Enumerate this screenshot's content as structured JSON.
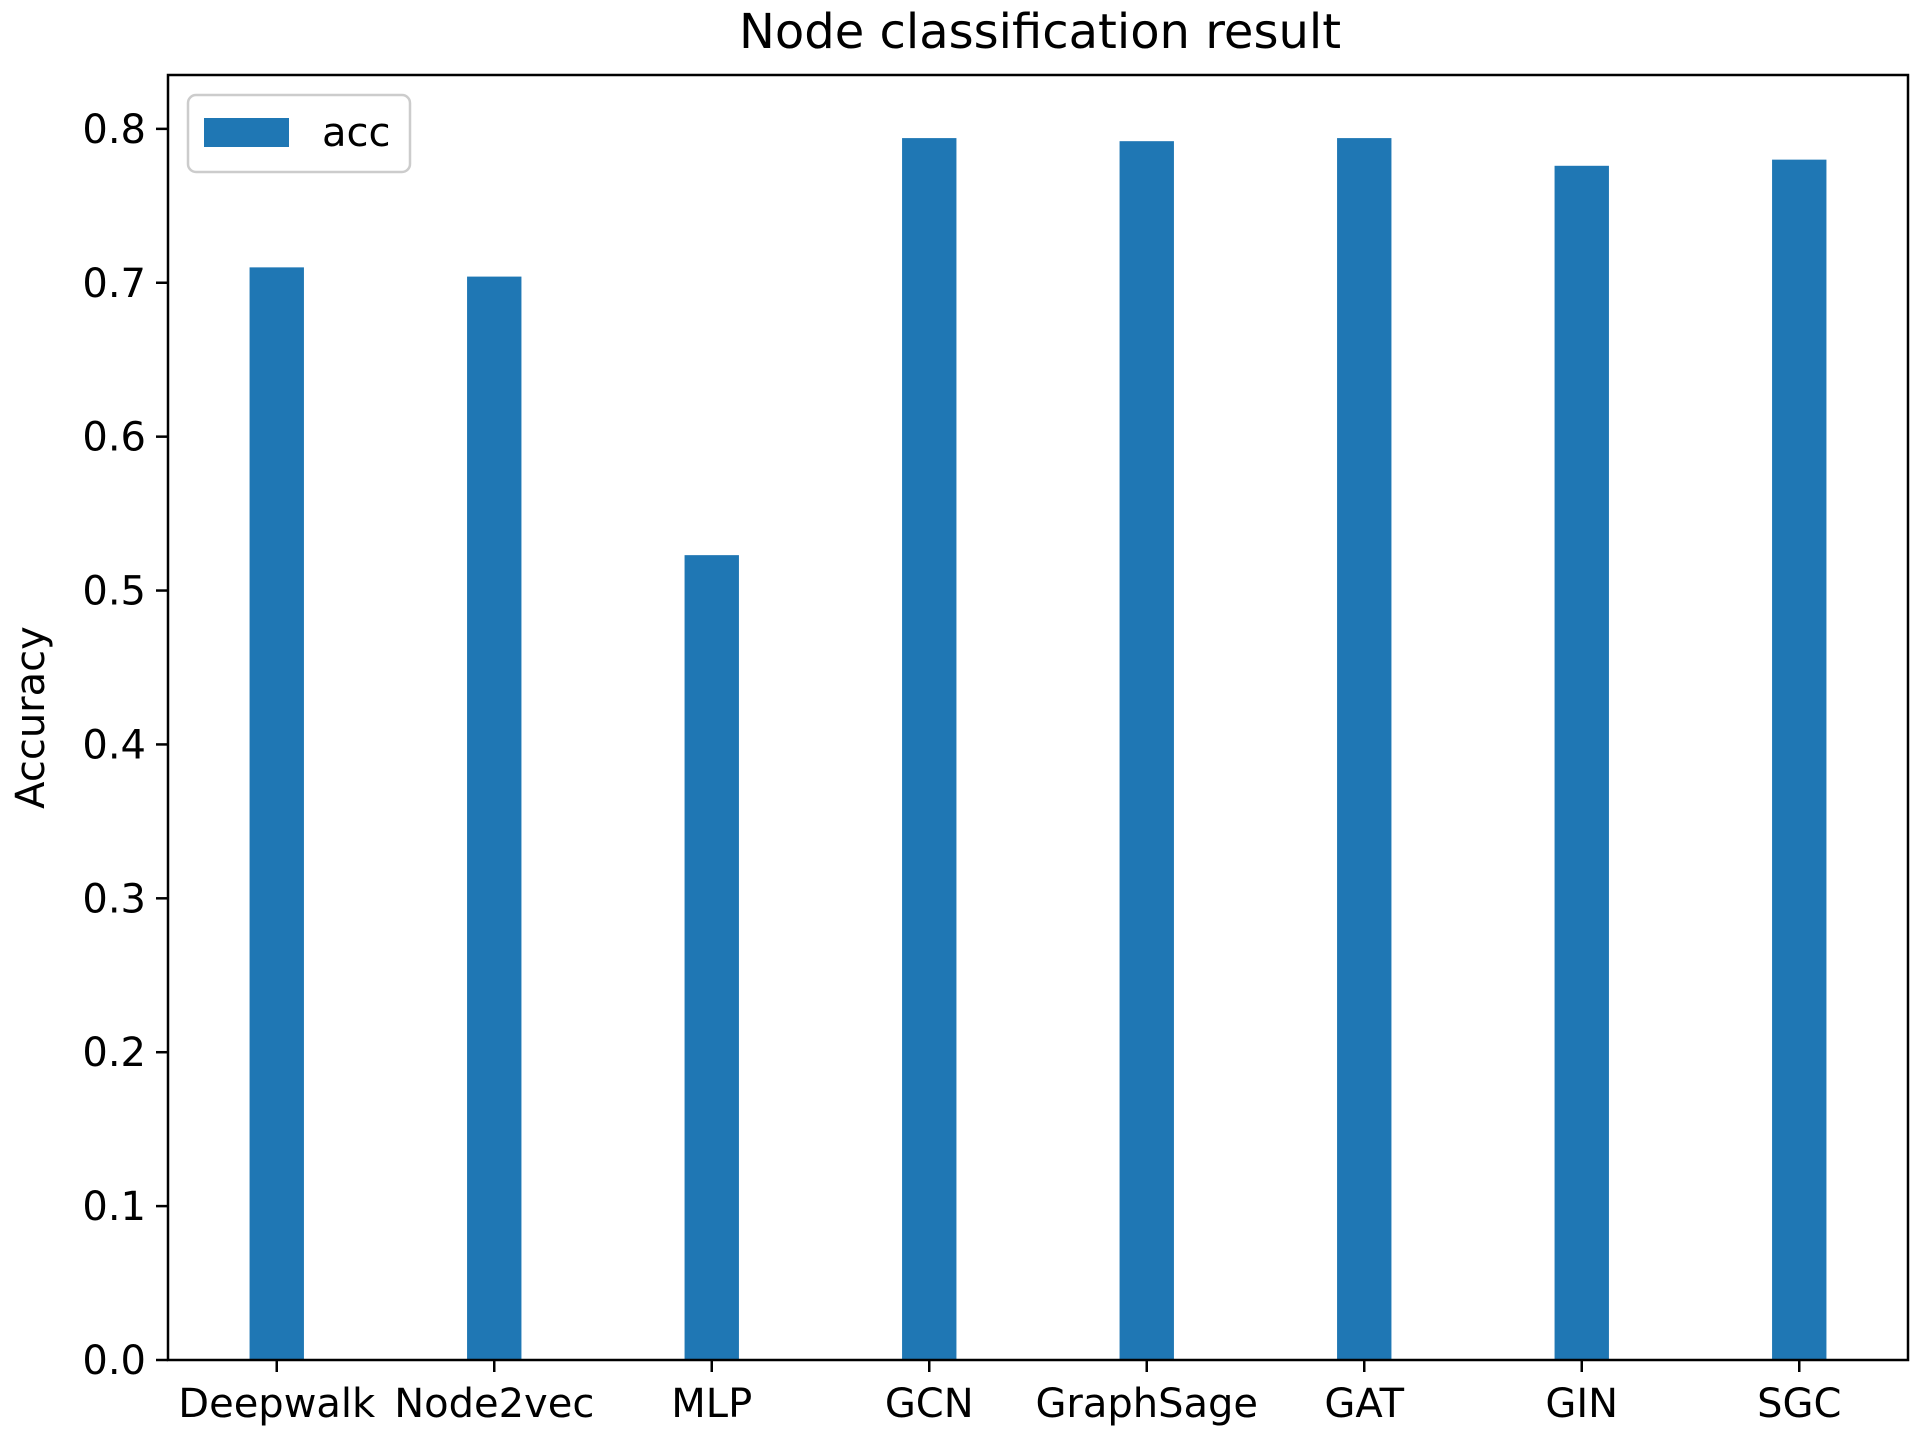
{
  "chart_data": {
    "type": "bar",
    "title": "Node classification result",
    "xlabel": "",
    "ylabel": "Accuracy",
    "categories": [
      "Deepwalk",
      "Node2vec",
      "MLP",
      "GCN",
      "GraphSage",
      "GAT",
      "GIN",
      "SGC"
    ],
    "series": [
      {
        "name": "acc",
        "values": [
          0.71,
          0.704,
          0.523,
          0.794,
          0.792,
          0.794,
          0.776,
          0.78
        ],
        "color": "#1f77b4"
      }
    ],
    "ylim": [
      0,
      0.835
    ],
    "yticks": [
      0.0,
      0.1,
      0.2,
      0.3,
      0.4,
      0.5,
      0.6,
      0.7,
      0.8
    ],
    "ytick_labels": [
      "0.0",
      "0.1",
      "0.2",
      "0.3",
      "0.4",
      "0.5",
      "0.6",
      "0.7",
      "0.8"
    ],
    "legend": {
      "position": "top-left",
      "entries": [
        "acc"
      ]
    },
    "grid": false
  }
}
